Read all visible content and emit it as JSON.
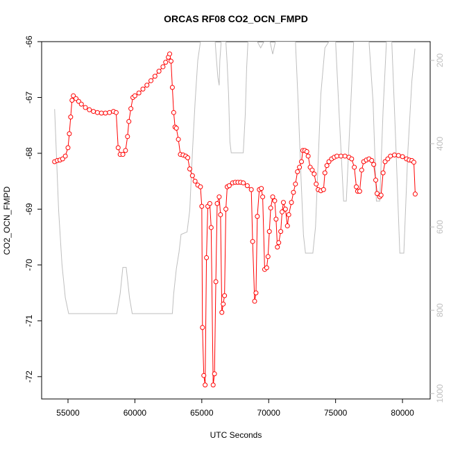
{
  "chart_data": {
    "type": "line",
    "title": "ORCAS RF08 CO2_OCN_FMPD",
    "x_label": "UTC Seconds",
    "y_label": "CO2_OCN_FMPD",
    "xlim": [
      53030,
      82070
    ],
    "xticks": [
      55000,
      60000,
      65000,
      70000,
      75000,
      80000
    ],
    "ylim": [
      -72.4,
      -66
    ],
    "yticks": [
      -72,
      -71,
      -70,
      -69,
      -68,
      -67,
      -66
    ],
    "y2lim": [
      1013,
      155
    ],
    "y2ticks": [
      200,
      400,
      600,
      800,
      1000
    ],
    "series": [
      {
        "color": "#ff0000",
        "axis": "y",
        "marker": "circle",
        "x": [
          54000,
          54200,
          54400,
          54600,
          54800,
          55000,
          55100,
          55200,
          55300,
          55400,
          55600,
          55800,
          56000,
          56300,
          56600,
          56900,
          57200,
          57500,
          57800,
          58100,
          58400,
          58600,
          58750,
          58900,
          59100,
          59300,
          59450,
          59550,
          59700,
          59850,
          60000,
          60300,
          60600,
          60900,
          61200,
          61500,
          61800,
          62100,
          62300,
          62500,
          62600,
          62700,
          62800,
          62900,
          63000,
          63100,
          63250,
          63400,
          63600,
          63800,
          63950,
          64100,
          64300,
          64500,
          64700,
          64900,
          65000,
          65050,
          65150,
          65250,
          65350,
          65450,
          65600,
          65700,
          65850,
          65950,
          66050,
          66150,
          66300,
          66400,
          66500,
          66600,
          66700,
          66800,
          66900,
          67050,
          67300,
          67500,
          67700,
          67900,
          68100,
          68400,
          68700,
          68800,
          68950,
          69050,
          69150,
          69300,
          69450,
          69550,
          69700,
          69850,
          69950,
          70050,
          70150,
          70300,
          70450,
          70550,
          70650,
          70750,
          70900,
          71000,
          71100,
          71250,
          71400,
          71500,
          71700,
          71850,
          72000,
          72150,
          72300,
          72450,
          72550,
          72700,
          72850,
          72950,
          73100,
          73250,
          73400,
          73550,
          73700,
          73900,
          74100,
          74200,
          74350,
          74500,
          74700,
          74900,
          75100,
          75400,
          75700,
          76000,
          76200,
          76400,
          76550,
          76650,
          76800,
          76950,
          77100,
          77300,
          77500,
          77700,
          77850,
          78000,
          78100,
          78300,
          78400,
          78550,
          78700,
          78900,
          79100,
          79400,
          79700,
          80000,
          80300,
          80500,
          80700,
          80850,
          80950
        ],
        "values": [
          -68.15,
          -68.13,
          -68.12,
          -68.1,
          -68.05,
          -67.9,
          -67.65,
          -67.35,
          -67.05,
          -66.97,
          -67.02,
          -67.07,
          -67.12,
          -67.18,
          -67.22,
          -67.25,
          -67.27,
          -67.28,
          -67.28,
          -67.27,
          -67.25,
          -67.27,
          -67.9,
          -68.02,
          -68.02,
          -67.95,
          -67.7,
          -67.43,
          -67.2,
          -67.0,
          -66.97,
          -66.92,
          -66.85,
          -66.78,
          -66.7,
          -66.62,
          -66.53,
          -66.45,
          -66.37,
          -66.28,
          -66.22,
          -66.35,
          -66.82,
          -67.27,
          -67.53,
          -67.55,
          -67.75,
          -68.02,
          -68.03,
          -68.05,
          -68.08,
          -68.28,
          -68.4,
          -68.5,
          -68.57,
          -68.6,
          -68.95,
          -71.12,
          -71.98,
          -72.15,
          -69.87,
          -68.95,
          -68.9,
          -69.33,
          -72.15,
          -71.95,
          -70.3,
          -68.9,
          -68.78,
          -69.1,
          -70.85,
          -70.7,
          -70.55,
          -69.0,
          -68.6,
          -68.58,
          -68.53,
          -68.52,
          -68.52,
          -68.52,
          -68.53,
          -68.58,
          -68.65,
          -69.58,
          -70.65,
          -70.5,
          -69.13,
          -68.65,
          -68.63,
          -68.78,
          -70.08,
          -70.05,
          -69.85,
          -69.4,
          -68.98,
          -68.78,
          -68.85,
          -69.18,
          -69.68,
          -69.6,
          -69.4,
          -69.05,
          -68.88,
          -69.0,
          -69.3,
          -69.1,
          -68.88,
          -68.7,
          -68.55,
          -68.33,
          -68.25,
          -68.15,
          -67.95,
          -67.95,
          -67.97,
          -68.05,
          -68.25,
          -68.3,
          -68.37,
          -68.55,
          -68.65,
          -68.67,
          -68.65,
          -68.35,
          -68.22,
          -68.15,
          -68.1,
          -68.07,
          -68.05,
          -68.05,
          -68.05,
          -68.07,
          -68.1,
          -68.25,
          -68.6,
          -68.68,
          -68.68,
          -68.3,
          -68.15,
          -68.12,
          -68.1,
          -68.13,
          -68.2,
          -68.48,
          -68.72,
          -68.78,
          -68.75,
          -68.35,
          -68.15,
          -68.1,
          -68.05,
          -68.03,
          -68.04,
          -68.06,
          -68.1,
          -68.12,
          -68.13,
          -68.16,
          -68.73
        ]
      },
      {
        "color": "#bebebe",
        "axis": "y2",
        "x": [
          54000,
          54300,
          54550,
          54800,
          55050,
          58650,
          58900,
          59100,
          59350,
          59600,
          59800,
          62800,
          62900,
          63100,
          63300,
          63450,
          63900,
          64100,
          64300,
          64500,
          64700,
          64900,
          66000,
          66100,
          66200,
          66300,
          66350,
          66450,
          66800,
          66900,
          67000,
          67100,
          67200,
          68100,
          68250,
          68350,
          68450,
          69150,
          69400,
          69650,
          70100,
          70300,
          70500,
          72000,
          72200,
          72400,
          72600,
          72750,
          73300,
          73500,
          73700,
          73900,
          74200,
          74500,
          75000,
          75300,
          75600,
          75800,
          76100,
          76350,
          77500,
          77800,
          78050,
          78300,
          78550,
          78800,
          79200,
          79500,
          79800,
          80100,
          80400,
          80700,
          80930
        ],
        "values": [
          317,
          560,
          690,
          770,
          808,
          808,
          760,
          697,
          697,
          770,
          808,
          808,
          760,
          700,
          660,
          618,
          612,
          560,
          420,
          300,
          200,
          155,
          155,
          200,
          240,
          260,
          200,
          155,
          155,
          210,
          280,
          395,
          422,
          422,
          330,
          220,
          155,
          155,
          170,
          155,
          155,
          185,
          155,
          155,
          300,
          470,
          620,
          663,
          663,
          600,
          440,
          280,
          170,
          155,
          155,
          350,
          538,
          538,
          330,
          155,
          155,
          300,
          538,
          538,
          320,
          155,
          155,
          400,
          663,
          663,
          420,
          250,
          172
        ]
      }
    ]
  }
}
